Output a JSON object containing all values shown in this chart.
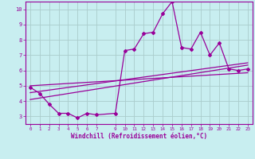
{
  "title": "",
  "xlabel": "Windchill (Refroidissement éolien,°C)",
  "ylabel": "",
  "bg_color": "#c8eef0",
  "line_color": "#990099",
  "grid_color": "#aacccc",
  "xlim": [
    -0.5,
    23.5
  ],
  "ylim": [
    2.5,
    10.5
  ],
  "yticks": [
    3,
    4,
    5,
    6,
    7,
    8,
    9,
    10
  ],
  "xticks": [
    0,
    1,
    2,
    3,
    4,
    5,
    6,
    7,
    9,
    10,
    11,
    12,
    13,
    14,
    15,
    16,
    17,
    18,
    19,
    20,
    21,
    22,
    23
  ],
  "series1_x": [
    0,
    1,
    2,
    3,
    4,
    5,
    6,
    7,
    9,
    10,
    11,
    12,
    13,
    14,
    15,
    16,
    17,
    18,
    19,
    20,
    21,
    22,
    23
  ],
  "series1_y": [
    4.9,
    4.5,
    3.8,
    3.2,
    3.2,
    2.9,
    3.2,
    3.1,
    3.2,
    7.3,
    7.4,
    8.4,
    8.5,
    9.7,
    10.5,
    7.5,
    7.4,
    8.5,
    7.0,
    7.8,
    6.1,
    6.0,
    6.1
  ],
  "trend1_x": [
    0,
    23
  ],
  "trend1_y": [
    4.1,
    6.35
  ],
  "trend2_x": [
    0,
    23
  ],
  "trend2_y": [
    4.55,
    6.5
  ],
  "trend3_x": [
    0,
    23
  ],
  "trend3_y": [
    5.0,
    5.85
  ]
}
